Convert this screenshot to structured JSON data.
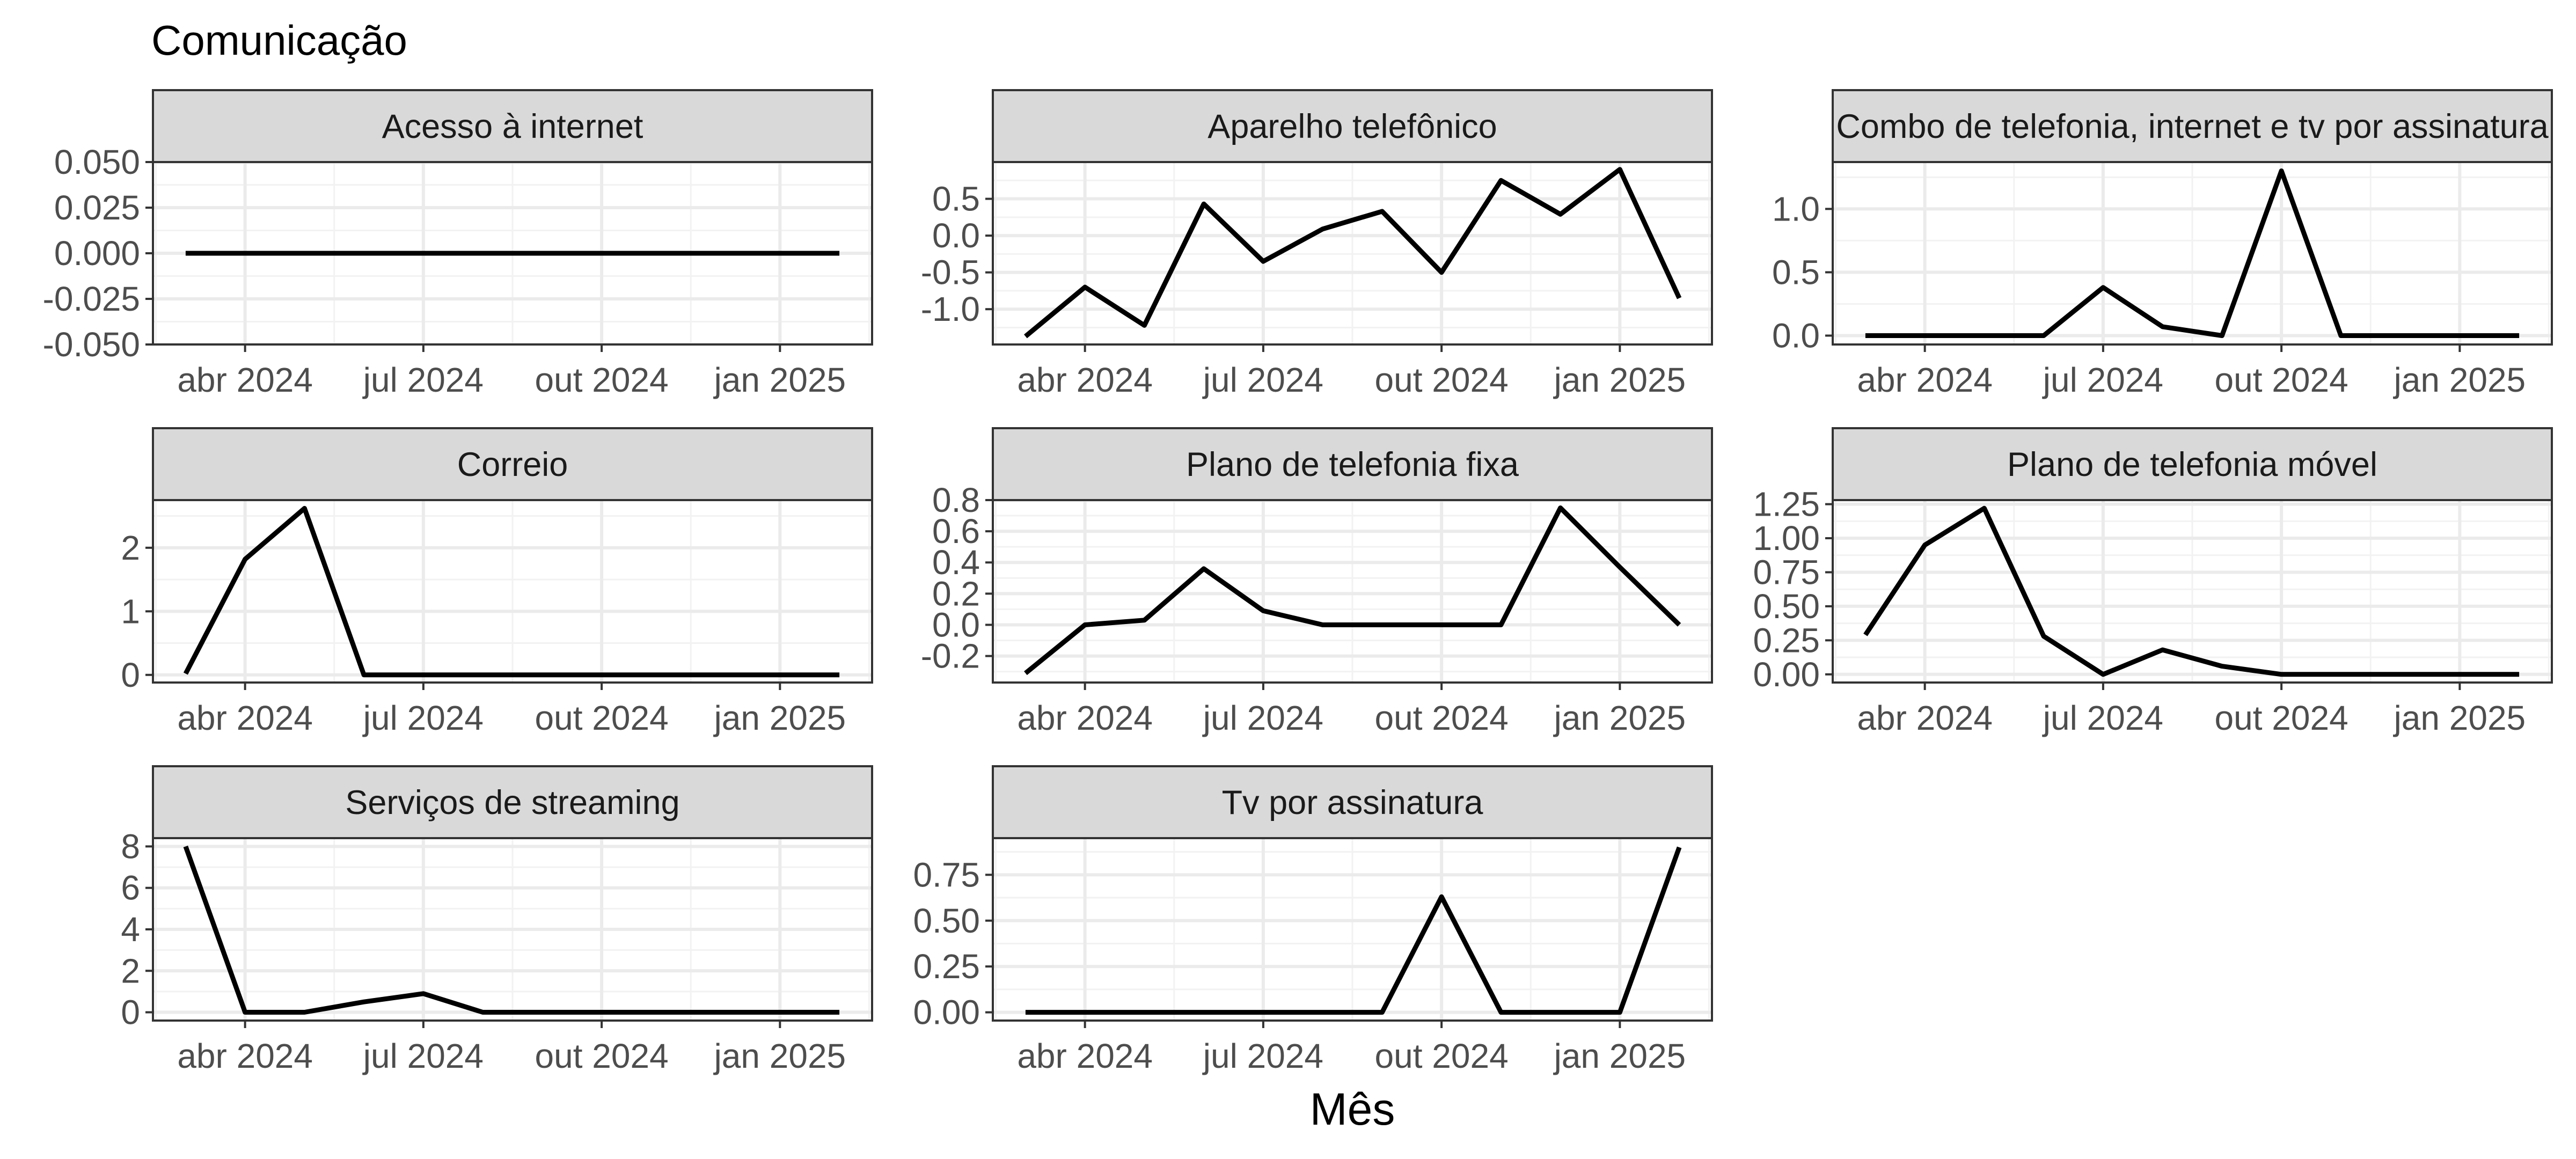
{
  "title": "Comunicação",
  "xlabel": "Mês",
  "chart_data": [
    {
      "type": "line",
      "title": "Acesso à internet",
      "x": [
        "2024-03",
        "2024-04",
        "2024-05",
        "2024-06",
        "2024-07",
        "2024-08",
        "2024-09",
        "2024-10",
        "2024-11",
        "2024-12",
        "2025-01",
        "2025-02"
      ],
      "values": [
        0,
        0,
        0,
        0,
        0,
        0,
        0,
        0,
        0,
        0,
        0,
        0
      ],
      "ylim": [
        -0.05,
        0.05
      ],
      "yticks": [
        -0.05,
        -0.025,
        0,
        0.025,
        0.05
      ],
      "ytick_labels": [
        "-0.050",
        "-0.025",
        "0.000",
        "0.025",
        "0.050"
      ],
      "xticks": [
        "2024-04",
        "2024-07",
        "2024-10",
        "2025-01"
      ],
      "xtick_labels": [
        "abr 2024",
        "jul 2024",
        "out 2024",
        "jan 2025"
      ]
    },
    {
      "type": "line",
      "title": "Aparelho telefônico",
      "x": [
        "2024-03",
        "2024-04",
        "2024-05",
        "2024-06",
        "2024-07",
        "2024-08",
        "2024-09",
        "2024-10",
        "2024-11",
        "2024-12",
        "2025-01",
        "2025-02"
      ],
      "values": [
        -1.37,
        -0.7,
        -1.22,
        0.43,
        -0.35,
        0.09,
        0.33,
        -0.5,
        0.75,
        0.29,
        0.9,
        -0.85
      ],
      "ylim": [
        -1.48,
        1.0
      ],
      "yticks": [
        -1.0,
        -0.5,
        0,
        0.5
      ],
      "ytick_labels": [
        "-1.0",
        "-0.5",
        "0.0",
        "0.5"
      ],
      "xticks": [
        "2024-04",
        "2024-07",
        "2024-10",
        "2025-01"
      ],
      "xtick_labels": [
        "abr 2024",
        "jul 2024",
        "out 2024",
        "jan 2025"
      ]
    },
    {
      "type": "line",
      "title": "Combo de telefonia, internet e tv por assinatura",
      "x": [
        "2024-03",
        "2024-04",
        "2024-05",
        "2024-06",
        "2024-07",
        "2024-08",
        "2024-09",
        "2024-10",
        "2024-11",
        "2024-12",
        "2025-01",
        "2025-02"
      ],
      "values": [
        0,
        0,
        0,
        0,
        0.38,
        0.07,
        0,
        1.3,
        0,
        0,
        0,
        0
      ],
      "ylim": [
        -0.07,
        1.37
      ],
      "yticks": [
        0,
        0.5,
        1.0
      ],
      "ytick_labels": [
        "0.0",
        "0.5",
        "1.0"
      ],
      "xticks": [
        "2024-04",
        "2024-07",
        "2024-10",
        "2025-01"
      ],
      "xtick_labels": [
        "abr 2024",
        "jul 2024",
        "out 2024",
        "jan 2025"
      ]
    },
    {
      "type": "line",
      "title": "Correio",
      "x": [
        "2024-03",
        "2024-04",
        "2024-05",
        "2024-06",
        "2024-07",
        "2024-08",
        "2024-09",
        "2024-10",
        "2024-11",
        "2024-12",
        "2025-01",
        "2025-02"
      ],
      "values": [
        0.02,
        1.82,
        2.62,
        0,
        0,
        0,
        0,
        0,
        0,
        0,
        0,
        0
      ],
      "ylim": [
        -0.12,
        2.75
      ],
      "yticks": [
        0,
        1,
        2
      ],
      "ytick_labels": [
        "0",
        "1",
        "2"
      ],
      "xticks": [
        "2024-04",
        "2024-07",
        "2024-10",
        "2025-01"
      ],
      "xtick_labels": [
        "abr 2024",
        "jul 2024",
        "out 2024",
        "jan 2025"
      ]
    },
    {
      "type": "line",
      "title": "Plano de telefonia fixa",
      "x": [
        "2024-03",
        "2024-04",
        "2024-05",
        "2024-06",
        "2024-07",
        "2024-08",
        "2024-09",
        "2024-10",
        "2024-11",
        "2024-12",
        "2025-01",
        "2025-02"
      ],
      "values": [
        -0.31,
        0,
        0.03,
        0.36,
        0.09,
        0,
        0,
        0,
        0,
        0.75,
        0.37,
        0
      ],
      "ylim": [
        -0.37,
        0.8
      ],
      "yticks": [
        -0.2,
        0,
        0.2,
        0.4,
        0.6,
        0.8
      ],
      "ytick_labels": [
        "-0.2",
        "0.0",
        "0.2",
        "0.4",
        "0.6",
        "0.8"
      ],
      "xticks": [
        "2024-04",
        "2024-07",
        "2024-10",
        "2025-01"
      ],
      "xtick_labels": [
        "abr 2024",
        "jul 2024",
        "out 2024",
        "jan 2025"
      ]
    },
    {
      "type": "line",
      "title": "Plano de telefonia móvel",
      "x": [
        "2024-03",
        "2024-04",
        "2024-05",
        "2024-06",
        "2024-07",
        "2024-08",
        "2024-09",
        "2024-10",
        "2024-11",
        "2024-12",
        "2025-01",
        "2025-02"
      ],
      "values": [
        0.29,
        0.95,
        1.22,
        0.28,
        0,
        0.18,
        0.06,
        0,
        0,
        0,
        0,
        0
      ],
      "ylim": [
        -0.06,
        1.28
      ],
      "yticks": [
        0,
        0.25,
        0.5,
        0.75,
        1.0,
        1.25
      ],
      "ytick_labels": [
        "0.00",
        "0.25",
        "0.50",
        "0.75",
        "1.00",
        "1.25"
      ],
      "xticks": [
        "2024-04",
        "2024-07",
        "2024-10",
        "2025-01"
      ],
      "xtick_labels": [
        "abr 2024",
        "jul 2024",
        "out 2024",
        "jan 2025"
      ]
    },
    {
      "type": "line",
      "title": "Serviços de streaming",
      "x": [
        "2024-03",
        "2024-04",
        "2024-05",
        "2024-06",
        "2024-07",
        "2024-08",
        "2024-09",
        "2024-10",
        "2024-11",
        "2024-12",
        "2025-01",
        "2025-02"
      ],
      "values": [
        8.0,
        0,
        0,
        0.5,
        0.9,
        0,
        0,
        0,
        0,
        0,
        0,
        0
      ],
      "ylim": [
        -0.4,
        8.4
      ],
      "yticks": [
        0,
        2,
        4,
        6,
        8
      ],
      "ytick_labels": [
        "0",
        "2",
        "4",
        "6",
        "8"
      ],
      "xticks": [
        "2024-04",
        "2024-07",
        "2024-10",
        "2025-01"
      ],
      "xtick_labels": [
        "abr 2024",
        "jul 2024",
        "out 2024",
        "jan 2025"
      ]
    },
    {
      "type": "line",
      "title": "Tv por assinatura",
      "x": [
        "2024-03",
        "2024-04",
        "2024-05",
        "2024-06",
        "2024-07",
        "2024-08",
        "2024-09",
        "2024-10",
        "2024-11",
        "2024-12",
        "2025-01",
        "2025-02"
      ],
      "values": [
        0,
        0,
        0,
        0,
        0,
        0,
        0,
        0.63,
        0,
        0,
        0,
        0.9
      ],
      "ylim": [
        -0.045,
        0.95
      ],
      "yticks": [
        0,
        0.25,
        0.5,
        0.75
      ],
      "ytick_labels": [
        "0.00",
        "0.25",
        "0.50",
        "0.75"
      ],
      "xticks": [
        "2024-04",
        "2024-07",
        "2024-10",
        "2025-01"
      ],
      "xtick_labels": [
        "abr 2024",
        "jul 2024",
        "out 2024",
        "jan 2025"
      ]
    }
  ]
}
